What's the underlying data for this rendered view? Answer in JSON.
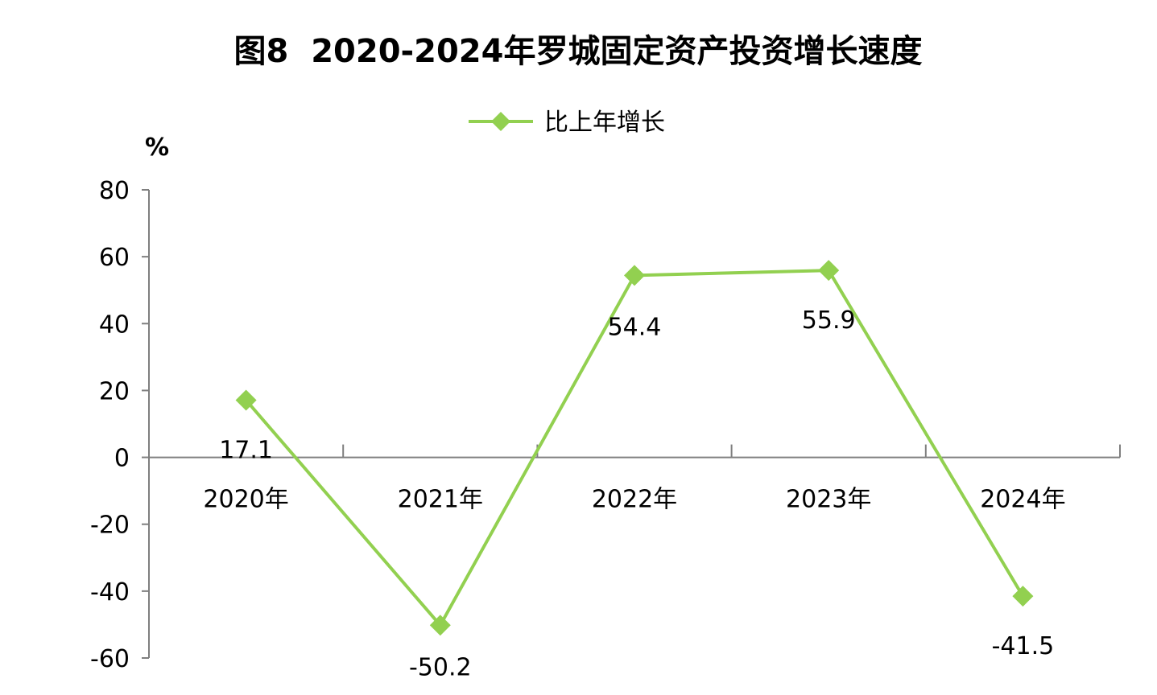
{
  "chart_data": {
    "type": "line",
    "title": "图8  2020-2024年罗城固定资产投资增长速度",
    "unit_label": "%",
    "categories": [
      "2020年",
      "2021年",
      "2022年",
      "2023年",
      "2024年"
    ],
    "series": [
      {
        "name": "比上年增长",
        "values": [
          17.1,
          -50.2,
          54.4,
          55.9,
          -41.5
        ],
        "labels": [
          "17.1",
          "-50.2",
          "54.4",
          "55.9",
          "-41.5"
        ],
        "color": "#92d050",
        "marker": "diamond"
      }
    ],
    "ylim": [
      -60,
      80
    ],
    "yticks": [
      80,
      60,
      40,
      20,
      0,
      -20,
      -40,
      -60
    ],
    "ytick_labels": [
      "80",
      "60",
      "40",
      "20",
      "0",
      "-20",
      "-40",
      "-60"
    ],
    "grid": false,
    "legend_position": "top-center",
    "axis_color": "#7f7f7f"
  }
}
